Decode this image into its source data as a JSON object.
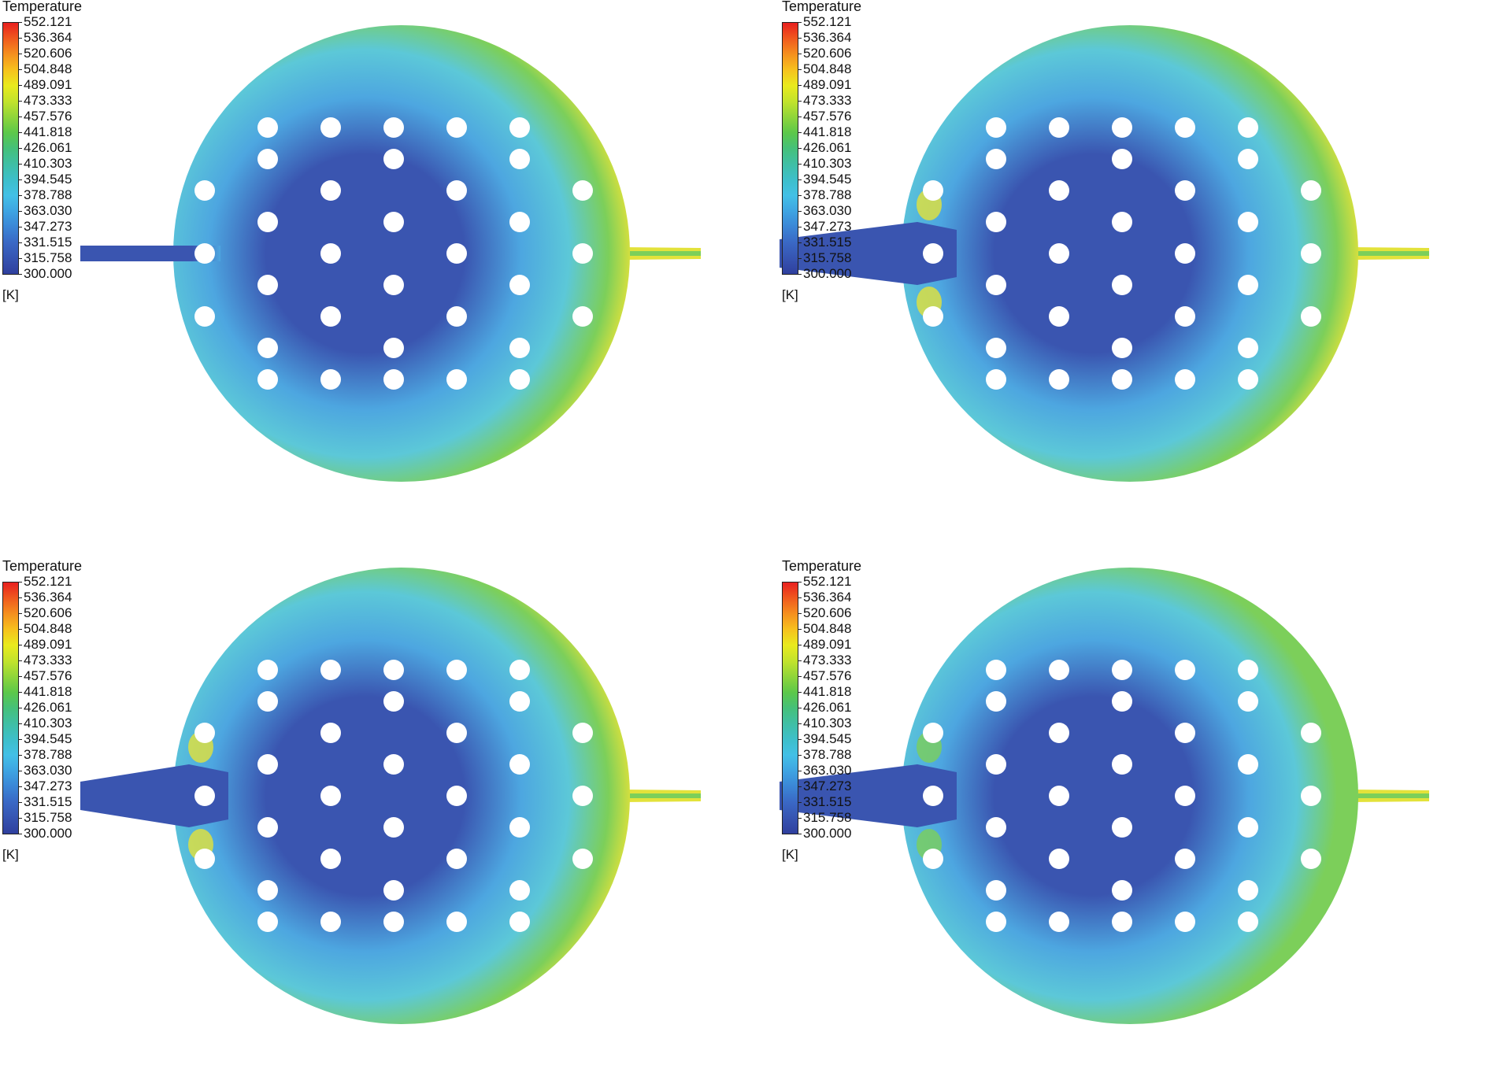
{
  "panels": [
    {
      "legend": {
        "title": "Temperature",
        "unit": "[K]",
        "levels": [
          "552.121",
          "536.364",
          "520.606",
          "504.848",
          "489.091",
          "473.333",
          "457.576",
          "441.818",
          "426.061",
          "410.303",
          "394.545",
          "378.788",
          "363.030",
          "347.273",
          "331.515",
          "315.758",
          "300.000"
        ]
      }
    },
    {
      "legend": {
        "title": "Temperature",
        "unit": "[K]",
        "levels": [
          "552.121",
          "536.364",
          "520.606",
          "504.848",
          "489.091",
          "473.333",
          "457.576",
          "441.818",
          "426.061",
          "410.303",
          "394.545",
          "378.788",
          "363.030",
          "347.273",
          "331.515",
          "315.758",
          "300.000"
        ]
      }
    },
    {
      "legend": {
        "title": "Temperature",
        "unit": "[K]",
        "levels": [
          "552.121",
          "536.364",
          "520.606",
          "504.848",
          "489.091",
          "473.333",
          "457.576",
          "441.818",
          "426.061",
          "410.303",
          "394.545",
          "378.788",
          "363.030",
          "347.273",
          "331.515",
          "315.758",
          "300.000"
        ]
      }
    },
    {
      "legend": {
        "title": "Temperature",
        "unit": "[K]",
        "levels": [
          "552.121",
          "536.364",
          "520.606",
          "504.848",
          "489.091",
          "473.333",
          "457.576",
          "441.818",
          "426.061",
          "410.303",
          "394.545",
          "378.788",
          "363.030",
          "347.273",
          "331.515",
          "315.758",
          "300.000"
        ]
      }
    }
  ],
  "colormap": [
    "#e8201f",
    "#f05a1e",
    "#f5901e",
    "#f6c21d",
    "#e9ea1d",
    "#c2e32c",
    "#8fd53a",
    "#5cc84a",
    "#45c07a",
    "#3fbfa5",
    "#3dbfca",
    "#43c0e6",
    "#3ea4e2",
    "#3b86d6",
    "#3a68c5",
    "#3654b1",
    "#2f3f9e"
  ],
  "colors": {
    "cold": "#3a55b0",
    "cool": "#4da6e0",
    "mid": "#5cc8d8",
    "warm": "#7ccf5a",
    "hot": "#e3e23a",
    "hottest": "#e8301f",
    "hole": "#ffffff"
  }
}
